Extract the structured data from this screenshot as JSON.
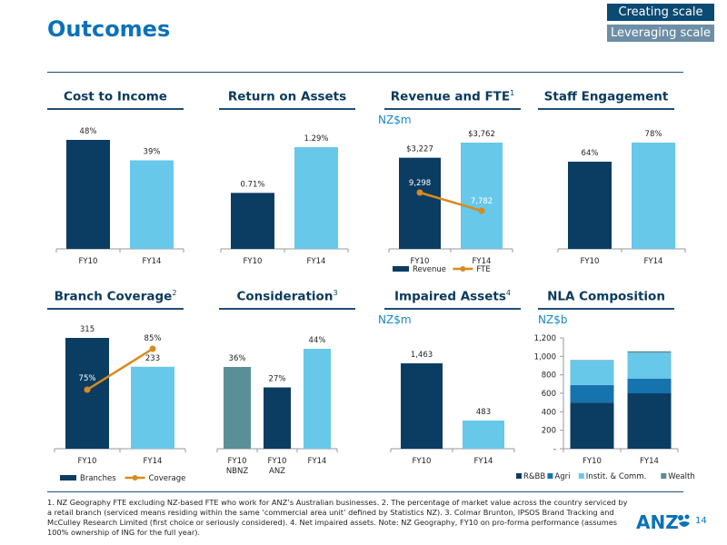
{
  "page": {
    "title": "Outcomes",
    "badges": [
      "Creating scale",
      "Leveraging scale"
    ],
    "page_number": "14",
    "logo_text": "ANZ",
    "footnote": "1. NZ Geography FTE excluding NZ-based FTE who work for ANZ’s Australian businesses. 2. The percentage of market value across the country serviced by a retail branch (serviced means residing within the same ‘commercial area unit’ defined by Statistics NZ). 3. Colmar Brunton, IPSOS Brand Tracking and McCulley Research Limited (first choice or seriously considered). 4. Net impaired assets. Note: NZ Geography, FY10 on pro-forma performance (assumes 100% ownership of ING for the full year).",
    "colors": {
      "dark_blue": "#0b3d63",
      "light_blue": "#67c8ea",
      "teal": "#5a8f96",
      "orange": "#d98a1e",
      "mid_blue": "#1573ad",
      "wealth": "#5c8a93"
    }
  },
  "chart_data": [
    {
      "id": "cost-to-income",
      "type": "bar",
      "title": "Cost to Income",
      "title_sup": "",
      "unit": "",
      "categories": [
        "FY10",
        "FY14"
      ],
      "values": [
        48,
        39
      ],
      "labels": [
        "48%",
        "39%"
      ],
      "colors": [
        "#0b3d63",
        "#67c8ea"
      ]
    },
    {
      "id": "return-on-assets",
      "type": "bar",
      "title": "Return on Assets",
      "title_sup": "",
      "unit": "",
      "categories": [
        "FY10",
        "FY14"
      ],
      "values": [
        0.71,
        1.29
      ],
      "labels": [
        "0.71%",
        "1.29%"
      ],
      "colors": [
        "#0b3d63",
        "#67c8ea"
      ]
    },
    {
      "id": "revenue-fte",
      "type": "bar",
      "title": "Revenue and FTE",
      "title_sup": "1",
      "unit": "NZ$m",
      "categories": [
        "FY10",
        "FY14"
      ],
      "values": [
        3227,
        3762
      ],
      "labels": [
        "$3,227",
        "$3,762"
      ],
      "colors": [
        "#0b3d63",
        "#67c8ea"
      ],
      "line": {
        "name": "FTE",
        "values": [
          9298,
          7782
        ],
        "labels": [
          "9,298",
          "7,782"
        ]
      },
      "legend": [
        "Revenue",
        "FTE"
      ]
    },
    {
      "id": "staff-engagement",
      "type": "bar",
      "title": "Staff Engagement",
      "title_sup": "",
      "unit": "",
      "categories": [
        "FY10",
        "FY14"
      ],
      "values": [
        64,
        78
      ],
      "labels": [
        "64%",
        "78%"
      ],
      "colors": [
        "#0b3d63",
        "#67c8ea"
      ]
    },
    {
      "id": "branch-coverage",
      "type": "bar",
      "title": "Branch Coverage",
      "title_sup": "2",
      "unit": "",
      "categories": [
        "FY10",
        "FY14"
      ],
      "values": [
        315,
        233
      ],
      "labels": [
        "315",
        "233"
      ],
      "colors": [
        "#0b3d63",
        "#67c8ea"
      ],
      "line": {
        "name": "Coverage",
        "values": [
          75,
          85
        ],
        "labels": [
          "75%",
          "85%"
        ]
      },
      "legend": [
        "Branches",
        "Coverage"
      ]
    },
    {
      "id": "consideration",
      "type": "bar",
      "title": "Consideration",
      "title_sup": "3",
      "unit": "",
      "categories": [
        "FY10 NBNZ",
        "FY10 ANZ",
        "FY14"
      ],
      "values": [
        36,
        27,
        44
      ],
      "labels": [
        "36%",
        "27%",
        "44%"
      ],
      "colors": [
        "#5a8f96",
        "#0b3d63",
        "#67c8ea"
      ]
    },
    {
      "id": "impaired-assets",
      "type": "bar",
      "title": "Impaired Assets",
      "title_sup": "4",
      "unit": "NZ$m",
      "categories": [
        "FY10",
        "FY14"
      ],
      "values": [
        1463,
        483
      ],
      "labels": [
        "1,463",
        "483"
      ],
      "colors": [
        "#0b3d63",
        "#67c8ea"
      ]
    },
    {
      "id": "nla-composition",
      "type": "bar",
      "stacked": true,
      "title": "NLA Composition",
      "title_sup": "",
      "unit": "NZ$b",
      "categories": [
        "FY10",
        "FY14"
      ],
      "ylim": [
        0,
        1200
      ],
      "yticks": [
        "-",
        "200",
        "400",
        "600",
        "800",
        "1,000",
        "1,200"
      ],
      "series": [
        {
          "name": "R&BB",
          "color": "#0b3d63",
          "values": [
            500,
            600
          ]
        },
        {
          "name": "Agri",
          "color": "#1573ad",
          "values": [
            190,
            160
          ]
        },
        {
          "name": "Instit. & Comm.",
          "color": "#67c8ea",
          "values": [
            265,
            280
          ]
        },
        {
          "name": "Wealth",
          "color": "#5c8a93",
          "values": [
            5,
            15
          ]
        }
      ]
    }
  ]
}
